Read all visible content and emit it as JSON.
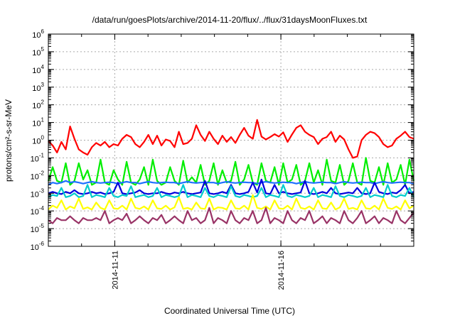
{
  "chart_data": {
    "type": "line",
    "title": "/data/run/goesPlots/archive/2014-11-20/flux/../flux/31daysMoonFluxes.txt",
    "xlabel": "Coordinated Universal Time (UTC)",
    "ylabel": "protons/cm²-s-sr-MeV",
    "yscale": "log",
    "ylim": [
      1e-06,
      1000000.0
    ],
    "y_ticks": [
      {
        "exp": -6,
        "base": "10",
        "sup": "-6"
      },
      {
        "exp": -5,
        "base": "10",
        "sup": "-5"
      },
      {
        "exp": -4,
        "base": "10",
        "sup": "-4"
      },
      {
        "exp": -3,
        "base": "10",
        "sup": "-3"
      },
      {
        "exp": -2,
        "base": "10",
        "sup": "-2"
      },
      {
        "exp": -1,
        "base": "10",
        "sup": "-1"
      },
      {
        "exp": 0,
        "base": "10",
        "sup": "0"
      },
      {
        "exp": 1,
        "base": "10",
        "sup": "1"
      },
      {
        "exp": 2,
        "base": "10",
        "sup": "2"
      },
      {
        "exp": 3,
        "base": "10",
        "sup": "3"
      },
      {
        "exp": 4,
        "base": "10",
        "sup": "4"
      },
      {
        "exp": 5,
        "base": "10",
        "sup": "5"
      },
      {
        "exp": 6,
        "base": "10",
        "sup": "6"
      }
    ],
    "xlim": [
      "2014-11-09",
      "2014-11-20"
    ],
    "x_ticks": [
      "2014-11-11",
      "2014-11-16"
    ],
    "grid": true,
    "series": [
      {
        "color": "#ff0000",
        "stroke": 2.2,
        "values": [
          0.9,
          0.5,
          0.2,
          0.8,
          0.3,
          6,
          1.2,
          0.3,
          0.2,
          0.15,
          0.4,
          0.7,
          0.5,
          0.8,
          0.4,
          0.6,
          0.5,
          1.2,
          2,
          1.5,
          0.6,
          0.4,
          0.8,
          2,
          0.6,
          1.8,
          0.5,
          1.1,
          0.9,
          0.4,
          3,
          0.6,
          0.7,
          1.2,
          7,
          2,
          0.9,
          3,
          1.2,
          0.6,
          1.8,
          0.8,
          1.5,
          0.7,
          2,
          5,
          1.8,
          1.2,
          14,
          1.6,
          1.1,
          1.5,
          2.2,
          1.6,
          2.8,
          0.8,
          2.1,
          5,
          7,
          3,
          2,
          1.5,
          0.6,
          1.2,
          1.5,
          3,
          0.8,
          1.8,
          1.1,
          0.3,
          0.1,
          0.12,
          1,
          2,
          3,
          2.5,
          1.5,
          0.6,
          0.4,
          0.5,
          1.2,
          1.8,
          3,
          1.5,
          1.2
        ]
      },
      {
        "color": "#00ee00",
        "stroke": 2.2,
        "values": [
          0.005,
          0.03,
          0.005,
          0.004,
          0.05,
          0.003,
          0.005,
          0.05,
          0.006,
          0.02,
          0.003,
          0.004,
          0.08,
          0.004,
          0.003,
          0.02,
          0.006,
          0.003,
          0.06,
          0.004,
          0.003,
          0.006,
          0.03,
          0.003,
          0.08,
          0.005,
          0.003,
          0.004,
          0.03,
          0.005,
          0.003,
          0.07,
          0.004,
          0.008,
          0.004,
          0.04,
          0.003,
          0.005,
          0.05,
          0.003,
          0.02,
          0.004,
          0.005,
          0.06,
          0.003,
          0.006,
          0.04,
          0.004,
          0.003,
          0.05,
          0.005,
          0.004,
          0.03,
          0.003,
          0.05,
          0.004,
          0.006,
          0.04,
          0.003,
          0.005,
          0.05,
          0.004,
          0.02,
          0.003,
          0.08,
          0.005,
          0.004,
          0.04,
          0.003,
          0.005,
          0.05,
          0.004,
          0.003,
          0.1,
          0.005,
          0.004,
          0.03,
          0.003,
          0.05,
          0.004,
          0.006,
          0.04,
          0.003,
          0.08,
          0.005
        ]
      },
      {
        "color": "#1e6fff",
        "stroke": 2.2,
        "values": [
          0.003,
          0.004,
          0.0035,
          0.004,
          0.005,
          0.004,
          0.0045,
          0.004,
          0.0035,
          0.004,
          0.0045,
          0.004,
          0.0038,
          0.004,
          0.0042,
          0.004,
          0.0035,
          0.004,
          0.0045,
          0.004,
          0.004,
          0.0035,
          0.004,
          0.0045,
          0.004,
          0.0038,
          0.004,
          0.0042,
          0.004,
          0.004,
          0.0035,
          0.004,
          0.0045,
          0.004,
          0.0038,
          0.004,
          0.0042,
          0.004,
          0.004,
          0.0035,
          0.004,
          0.0045,
          0.004,
          0.0038,
          0.004,
          0.0042,
          0.004,
          0.004,
          0.0035,
          0.004,
          0.0045,
          0.004,
          0.0038,
          0.004,
          0.0042,
          0.004,
          0.004,
          0.0035,
          0.004,
          0.0045,
          0.004,
          0.0038,
          0.004,
          0.0042,
          0.004,
          0.004,
          0.0035,
          0.004,
          0.0045,
          0.004,
          0.0038,
          0.004,
          0.0042,
          0.004,
          0.004,
          0.0035,
          0.004,
          0.0045,
          0.004,
          0.0038,
          0.004,
          0.0042,
          0.004,
          0.004,
          0.0035
        ]
      },
      {
        "color": "#0000dd",
        "stroke": 2.2,
        "values": [
          0.001,
          0.0012,
          0.001,
          0.0009,
          0.0012,
          0.001,
          0.0015,
          0.001,
          0.0009,
          0.001,
          0.0012,
          0.001,
          0.0011,
          0.0009,
          0.001,
          0.0012,
          0.004,
          0.001,
          0.0009,
          0.001,
          0.0011,
          0.0015,
          0.001,
          0.0009,
          0.001,
          0.001,
          0.0012,
          0.001,
          0.0009,
          0.0011,
          0.001,
          0.0012,
          0.001,
          0.0009,
          0.001,
          0.0011,
          0.005,
          0.001,
          0.0009,
          0.001,
          0.0012,
          0.001,
          0.003,
          0.001,
          0.0009,
          0.001,
          0.0012,
          0.004,
          0.0011,
          0.006,
          0.001,
          0.0009,
          0.003,
          0.001,
          0.0012,
          0.001,
          0.0009,
          0.001,
          0.0011,
          0.005,
          0.001,
          0.0009,
          0.001,
          0.0012,
          0.001,
          0.002,
          0.001,
          0.0009,
          0.001,
          0.0011,
          0.001,
          0.002,
          0.001,
          0.0009,
          0.001,
          0.004,
          0.0012,
          0.001,
          0.0009,
          0.0011,
          0.001,
          0.0015,
          0.003,
          0.001,
          0.0012
        ]
      },
      {
        "color": "#00cccc",
        "stroke": 2.2,
        "values": [
          0.0006,
          0.0008,
          0.0007,
          0.002,
          0.0006,
          0.0007,
          0.001,
          0.0006,
          0.0007,
          0.003,
          0.0006,
          0.0008,
          0.0007,
          0.0006,
          0.002,
          0.0007,
          0.0006,
          0.0008,
          0.0007,
          0.0025,
          0.0006,
          0.0007,
          0.0008,
          0.0006,
          0.0007,
          0.002,
          0.0006,
          0.0008,
          0.0007,
          0.0006,
          0.0007,
          0.003,
          0.0006,
          0.0008,
          0.0007,
          0.0006,
          0.002,
          0.0007,
          0.0006,
          0.0008,
          0.0007,
          0.0006,
          0.0025,
          0.0007,
          0.0006,
          0.0008,
          0.0007,
          0.0006,
          0.0007,
          0.002,
          0.0006,
          0.0008,
          0.0007,
          0.0006,
          0.003,
          0.0007,
          0.0006,
          0.0008,
          0.0007,
          0.0006,
          0.0007,
          0.002,
          0.0006,
          0.0008,
          0.0007,
          0.0006,
          0.0025,
          0.0007,
          0.0006,
          0.0008,
          0.0007,
          0.0006,
          0.0007,
          0.002,
          0.0006,
          0.0008,
          0.0007,
          0.0006,
          0.003,
          0.0007,
          0.0006,
          0.0008,
          0.0007,
          0.002,
          0.0006
        ]
      },
      {
        "color": "#ffff00",
        "stroke": 2.2,
        "values": [
          0.00012,
          0.0002,
          0.00015,
          0.0004,
          0.00012,
          0.00018,
          0.00014,
          0.0005,
          0.00013,
          0.00016,
          0.00012,
          0.0003,
          0.00015,
          0.00012,
          0.0004,
          0.00014,
          0.00013,
          0.0002,
          0.00012,
          0.0005,
          0.00015,
          0.00013,
          0.00018,
          0.00012,
          0.0004,
          0.00014,
          0.00013,
          0.0002,
          0.00012,
          0.00016,
          0.0006,
          0.00013,
          0.00015,
          0.00012,
          0.0003,
          0.00014,
          0.00013,
          0.0005,
          0.00012,
          0.00016,
          0.00015,
          0.00012,
          0.0004,
          0.00014,
          0.00013,
          0.0002,
          0.00012,
          0.0008,
          0.00015,
          0.00013,
          0.00018,
          0.00012,
          0.0004,
          0.00014,
          0.00013,
          0.0002,
          0.00012,
          0.0005,
          0.00015,
          0.00013,
          0.00018,
          0.00012,
          0.0004,
          0.00014,
          0.00013,
          0.0003,
          0.00012,
          0.00016,
          0.0005,
          0.00013,
          0.00015,
          0.00012,
          0.0004,
          0.00014,
          0.00013,
          0.0002,
          0.00012,
          0.0005,
          0.00015,
          0.00013,
          0.00018,
          0.00012,
          0.0004,
          0.00014,
          0.0002
        ]
      },
      {
        "color": "#993366",
        "stroke": 2.2,
        "values": [
          3e-05,
          2e-05,
          4e-05,
          3e-05,
          3e-05,
          5e-05,
          3e-05,
          2e-05,
          4e-05,
          3e-05,
          3e-05,
          4e-05,
          3e-05,
          0.0001,
          2e-05,
          3e-05,
          4e-05,
          3e-05,
          7e-05,
          2e-05,
          3e-05,
          5e-05,
          3e-05,
          2e-05,
          4e-05,
          3e-05,
          6e-05,
          2e-05,
          3e-05,
          5e-05,
          3e-05,
          2e-05,
          0.0001,
          3e-05,
          4e-05,
          2e-05,
          3e-05,
          0.00015,
          2e-05,
          4e-05,
          3e-05,
          2e-05,
          0.0001,
          3e-05,
          2e-05,
          4e-05,
          3e-05,
          0.0001,
          2e-05,
          3e-05,
          0.00015,
          2e-05,
          4e-05,
          3e-05,
          2e-05,
          0.0001,
          3e-05,
          2e-05,
          4e-05,
          3e-05,
          0.0001,
          2e-05,
          3e-05,
          5e-05,
          2e-05,
          4e-05,
          3e-05,
          2e-05,
          0.0001,
          3e-05,
          2e-05,
          4e-05,
          0.0001,
          2e-05,
          3e-05,
          5e-05,
          2e-05,
          4e-05,
          3e-05,
          2e-05,
          0.0001,
          3e-05,
          2e-05,
          4e-05,
          8e-05
        ]
      }
    ]
  }
}
